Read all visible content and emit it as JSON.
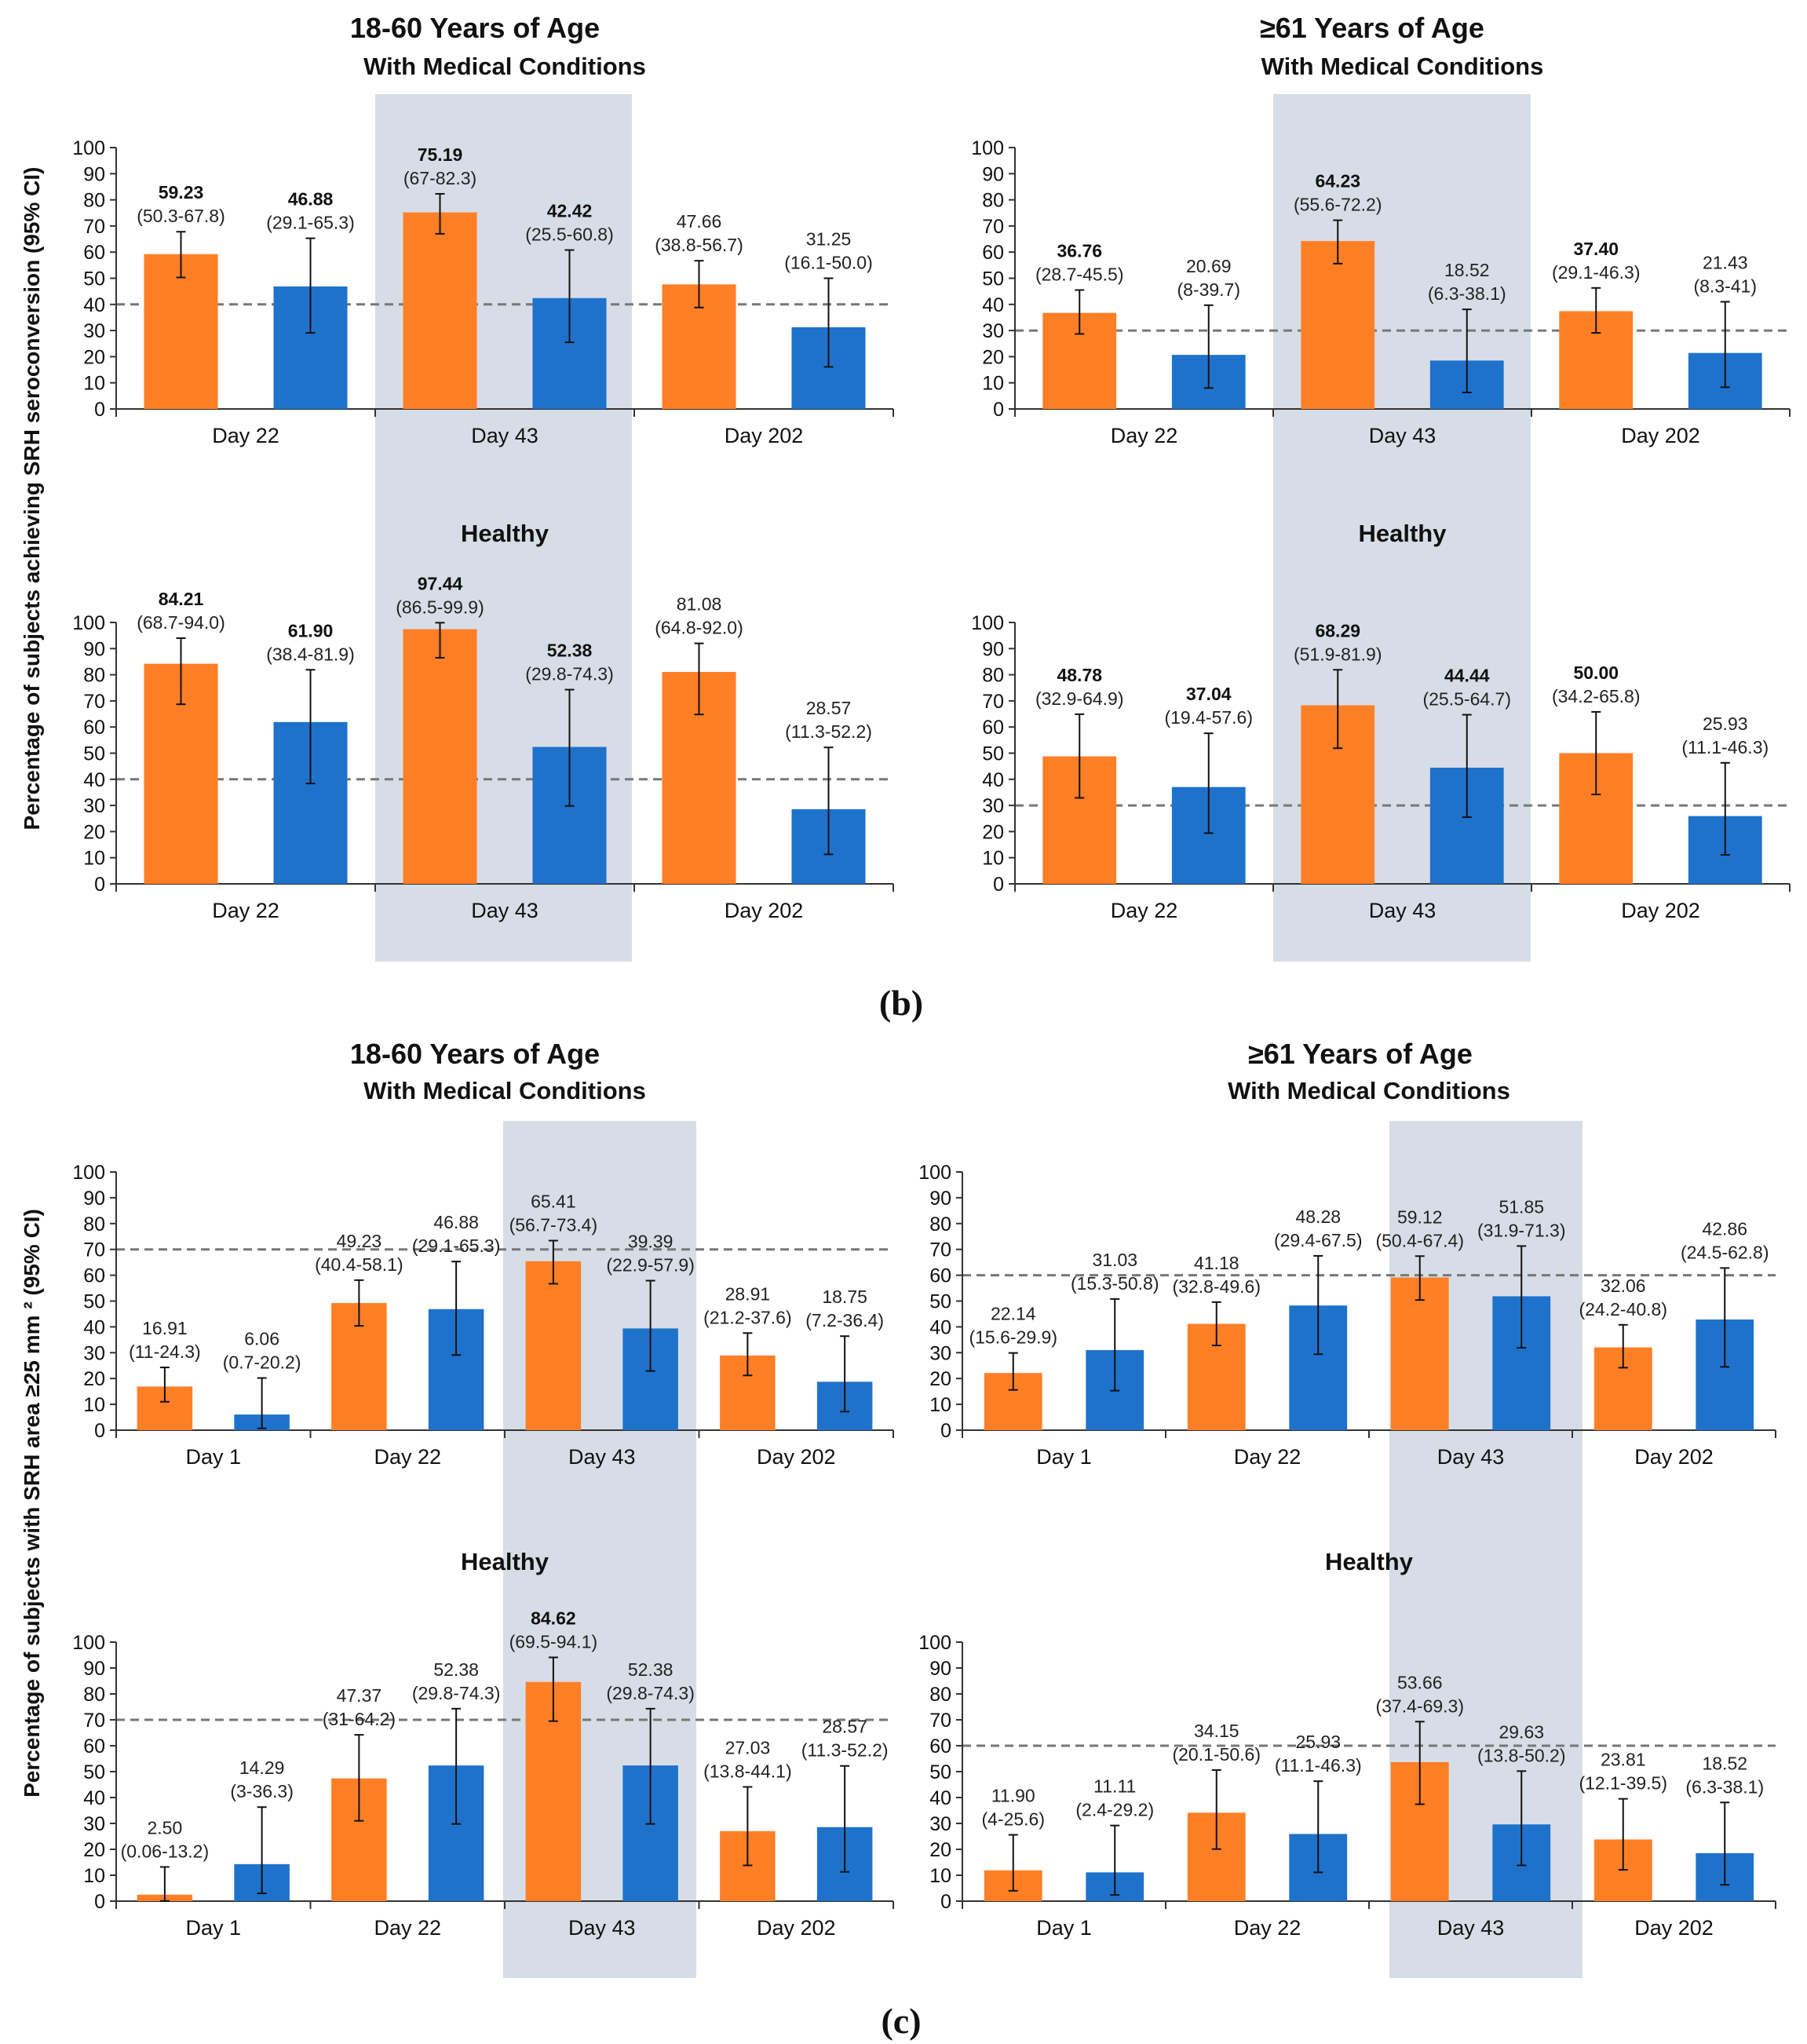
{
  "colors": {
    "orange": "#FF7F27",
    "blue": "#1F72CB",
    "shade": "#D7DDE6",
    "threshold": "#777777",
    "axis": "#333333"
  },
  "figure_labels": {
    "b": "(b)",
    "c": "(c)"
  },
  "y_axis_titles": {
    "b": "Percentage of subjects achieving SRH seroconversion (95% CI)",
    "c": "Percentage of subjects with SRH area ≥25 mm ² (95% CI)"
  },
  "column_titles": {
    "b_left": "18-60 Years of Age",
    "b_right": "≥61 Years of Age",
    "c_left": "18-60 Years of Age",
    "c_right": "≥61 Years of Age"
  },
  "chart_data": [
    {
      "id": "b1",
      "type": "bar",
      "title": "With Medical Conditions",
      "ylim": [
        0,
        100
      ],
      "threshold": 40,
      "yticks": [
        "0",
        "10",
        "20",
        "30",
        "40",
        "50",
        "60",
        "70",
        "80",
        "90",
        "100"
      ],
      "categories": [
        "Day 22",
        "Day 43",
        "Day 202"
      ],
      "shaded_category": 1,
      "bars": [
        {
          "value": 59.23,
          "label": "59.23",
          "ci": [
            50.3,
            67.8
          ],
          "ci_label": "(50.3-67.8)",
          "bold": true
        },
        {
          "value": 46.88,
          "label": "46.88",
          "ci": [
            29.1,
            65.3
          ],
          "ci_label": "(29.1-65.3)",
          "bold": true
        },
        {
          "value": 75.19,
          "label": "75.19",
          "ci": [
            67.0,
            82.3
          ],
          "ci_label": "(67-82.3)",
          "bold": true
        },
        {
          "value": 42.42,
          "label": "42.42",
          "ci": [
            25.5,
            60.8
          ],
          "ci_label": "(25.5-60.8)",
          "bold": true
        },
        {
          "value": 47.66,
          "label": "47.66",
          "ci": [
            38.8,
            56.7
          ],
          "ci_label": "(38.8-56.7)",
          "bold": false
        },
        {
          "value": 31.25,
          "label": "31.25",
          "ci": [
            16.1,
            50.0
          ],
          "ci_label": "(16.1-50.0)",
          "bold": false
        }
      ]
    },
    {
      "id": "b2",
      "type": "bar",
      "title": "With Medical Conditions",
      "ylim": [
        0,
        100
      ],
      "threshold": 30,
      "yticks": [
        "0",
        "10",
        "20",
        "30",
        "40",
        "50",
        "60",
        "70",
        "80",
        "90",
        "100"
      ],
      "categories": [
        "Day 22",
        "Day 43",
        "Day 202"
      ],
      "shaded_category": 1,
      "bars": [
        {
          "value": 36.76,
          "label": "36.76",
          "ci": [
            28.7,
            45.5
          ],
          "ci_label": "(28.7-45.5)",
          "bold": true
        },
        {
          "value": 20.69,
          "label": "20.69",
          "ci": [
            8.0,
            39.7
          ],
          "ci_label": "(8-39.7)",
          "bold": false
        },
        {
          "value": 64.23,
          "label": "64.23",
          "ci": [
            55.6,
            72.2
          ],
          "ci_label": "(55.6-72.2)",
          "bold": true
        },
        {
          "value": 18.52,
          "label": "18.52",
          "ci": [
            6.3,
            38.1
          ],
          "ci_label": "(6.3-38.1)",
          "bold": false
        },
        {
          "value": 37.4,
          "label": "37.40",
          "ci": [
            29.1,
            46.3
          ],
          "ci_label": "(29.1-46.3)",
          "bold": true
        },
        {
          "value": 21.43,
          "label": "21.43",
          "ci": [
            8.3,
            41.0
          ],
          "ci_label": "(8.3-41)",
          "bold": false
        }
      ]
    },
    {
      "id": "b3",
      "type": "bar",
      "title": "Healthy",
      "ylim": [
        0,
        100
      ],
      "threshold": 40,
      "yticks": [
        "0",
        "10",
        "20",
        "30",
        "40",
        "50",
        "60",
        "70",
        "80",
        "90",
        "100"
      ],
      "categories": [
        "Day 22",
        "Day 43",
        "Day 202"
      ],
      "shaded_category": 1,
      "bars": [
        {
          "value": 84.21,
          "label": "84.21",
          "ci": [
            68.7,
            94.0
          ],
          "ci_label": "(68.7-94.0)",
          "bold": true
        },
        {
          "value": 61.9,
          "label": "61.90",
          "ci": [
            38.4,
            81.9
          ],
          "ci_label": "(38.4-81.9)",
          "bold": true
        },
        {
          "value": 97.44,
          "label": "97.44",
          "ci": [
            86.5,
            99.9
          ],
          "ci_label": "(86.5-99.9)",
          "bold": true
        },
        {
          "value": 52.38,
          "label": "52.38",
          "ci": [
            29.8,
            74.3
          ],
          "ci_label": "(29.8-74.3)",
          "bold": true
        },
        {
          "value": 81.08,
          "label": "81.08",
          "ci": [
            64.8,
            92.0
          ],
          "ci_label": "(64.8-92.0)",
          "bold": false
        },
        {
          "value": 28.57,
          "label": "28.57",
          "ci": [
            11.3,
            52.2
          ],
          "ci_label": "(11.3-52.2)",
          "bold": false
        }
      ]
    },
    {
      "id": "b4",
      "type": "bar",
      "title": "Healthy",
      "ylim": [
        0,
        100
      ],
      "threshold": 30,
      "yticks": [
        "0",
        "10",
        "20",
        "30",
        "40",
        "50",
        "60",
        "70",
        "80",
        "90",
        "100"
      ],
      "categories": [
        "Day 22",
        "Day 43",
        "Day 202"
      ],
      "shaded_category": 1,
      "bars": [
        {
          "value": 48.78,
          "label": "48.78",
          "ci": [
            32.9,
            64.9
          ],
          "ci_label": "(32.9-64.9)",
          "bold": true
        },
        {
          "value": 37.04,
          "label": "37.04",
          "ci": [
            19.4,
            57.6
          ],
          "ci_label": "(19.4-57.6)",
          "bold": true
        },
        {
          "value": 68.29,
          "label": "68.29",
          "ci": [
            51.9,
            81.9
          ],
          "ci_label": "(51.9-81.9)",
          "bold": true
        },
        {
          "value": 44.44,
          "label": "44.44",
          "ci": [
            25.5,
            64.7
          ],
          "ci_label": "(25.5-64.7)",
          "bold": true
        },
        {
          "value": 50.0,
          "label": "50.00",
          "ci": [
            34.2,
            65.8
          ],
          "ci_label": "(34.2-65.8)",
          "bold": true
        },
        {
          "value": 25.93,
          "label": "25.93",
          "ci": [
            11.1,
            46.3
          ],
          "ci_label": "(11.1-46.3)",
          "bold": false
        }
      ]
    },
    {
      "id": "c1",
      "type": "bar",
      "title": "With Medical Conditions",
      "ylim": [
        0,
        100
      ],
      "threshold": 70,
      "yticks": [
        "0",
        "10",
        "20",
        "30",
        "40",
        "50",
        "60",
        "70",
        "80",
        "90",
        "100"
      ],
      "categories": [
        "Day 1",
        "Day 22",
        "Day 43",
        "Day 202"
      ],
      "shaded_category": 2,
      "bars": [
        {
          "value": 16.91,
          "label": "16.91",
          "ci": [
            11.0,
            24.3
          ],
          "ci_label": "(11-24.3)",
          "bold": false
        },
        {
          "value": 6.06,
          "label": "6.06",
          "ci": [
            0.7,
            20.2
          ],
          "ci_label": "(0.7-20.2)",
          "bold": false
        },
        {
          "value": 49.23,
          "label": "49.23",
          "ci": [
            40.4,
            58.1
          ],
          "ci_label": "(40.4-58.1)",
          "bold": false
        },
        {
          "value": 46.88,
          "label": "46.88",
          "ci": [
            29.1,
            65.3
          ],
          "ci_label": "(29.1-65.3)",
          "bold": false
        },
        {
          "value": 65.41,
          "label": "65.41",
          "ci": [
            56.7,
            73.4
          ],
          "ci_label": "(56.7-73.4)",
          "bold": false
        },
        {
          "value": 39.39,
          "label": "39.39",
          "ci": [
            22.9,
            57.9
          ],
          "ci_label": "(22.9-57.9)",
          "bold": false
        },
        {
          "value": 28.91,
          "label": "28.91",
          "ci": [
            21.2,
            37.6
          ],
          "ci_label": "(21.2-37.6)",
          "bold": false
        },
        {
          "value": 18.75,
          "label": "18.75",
          "ci": [
            7.2,
            36.4
          ],
          "ci_label": "(7.2-36.4)",
          "bold": false
        }
      ]
    },
    {
      "id": "c2",
      "type": "bar",
      "title": "With Medical Conditions",
      "ylim": [
        0,
        100
      ],
      "threshold": 60,
      "yticks": [
        "0",
        "10",
        "20",
        "30",
        "40",
        "50",
        "60",
        "70",
        "80",
        "90",
        "100"
      ],
      "categories": [
        "Day 1",
        "Day 22",
        "Day 43",
        "Day 202"
      ],
      "shaded_category": 2,
      "bars": [
        {
          "value": 22.14,
          "label": "22.14",
          "ci": [
            15.6,
            29.9
          ],
          "ci_label": "(15.6-29.9)",
          "bold": false
        },
        {
          "value": 31.03,
          "label": "31.03",
          "ci": [
            15.3,
            50.8
          ],
          "ci_label": "(15.3-50.8)",
          "bold": false
        },
        {
          "value": 41.18,
          "label": "41.18",
          "ci": [
            32.8,
            49.6
          ],
          "ci_label": "(32.8-49.6)",
          "bold": false
        },
        {
          "value": 48.28,
          "label": "48.28",
          "ci": [
            29.4,
            67.5
          ],
          "ci_label": "(29.4-67.5)",
          "bold": false
        },
        {
          "value": 59.12,
          "label": "59.12",
          "ci": [
            50.4,
            67.4
          ],
          "ci_label": "(50.4-67.4)",
          "bold": false
        },
        {
          "value": 51.85,
          "label": "51.85",
          "ci": [
            31.9,
            71.3
          ],
          "ci_label": "(31.9-71.3)",
          "bold": false
        },
        {
          "value": 32.06,
          "label": "32.06",
          "ci": [
            24.2,
            40.8
          ],
          "ci_label": "(24.2-40.8)",
          "bold": false
        },
        {
          "value": 42.86,
          "label": "42.86",
          "ci": [
            24.5,
            62.8
          ],
          "ci_label": "(24.5-62.8)",
          "bold": false
        }
      ]
    },
    {
      "id": "c3",
      "type": "bar",
      "title": "Healthy",
      "ylim": [
        0,
        100
      ],
      "threshold": 70,
      "yticks": [
        "0",
        "10",
        "20",
        "30",
        "40",
        "50",
        "60",
        "70",
        "80",
        "90",
        "100"
      ],
      "categories": [
        "Day 1",
        "Day 22",
        "Day 43",
        "Day 202"
      ],
      "shaded_category": 2,
      "bars": [
        {
          "value": 2.5,
          "label": "2.50",
          "ci": [
            0.06,
            13.2
          ],
          "ci_label": "(0.06-13.2)",
          "bold": false
        },
        {
          "value": 14.29,
          "label": "14.29",
          "ci": [
            3.0,
            36.3
          ],
          "ci_label": "(3-36.3)",
          "bold": false
        },
        {
          "value": 47.37,
          "label": "47.37",
          "ci": [
            31.0,
            64.2
          ],
          "ci_label": "(31-64.2)",
          "bold": false
        },
        {
          "value": 52.38,
          "label": "52.38",
          "ci": [
            29.8,
            74.3
          ],
          "ci_label": "(29.8-74.3)",
          "bold": false
        },
        {
          "value": 84.62,
          "label": "84.62",
          "ci": [
            69.5,
            94.1
          ],
          "ci_label": "(69.5-94.1)",
          "bold": true
        },
        {
          "value": 52.38,
          "label": "52.38",
          "ci": [
            29.8,
            74.3
          ],
          "ci_label": "(29.8-74.3)",
          "bold": false
        },
        {
          "value": 27.03,
          "label": "27.03",
          "ci": [
            13.8,
            44.1
          ],
          "ci_label": "(13.8-44.1)",
          "bold": false
        },
        {
          "value": 28.57,
          "label": "28.57",
          "ci": [
            11.3,
            52.2
          ],
          "ci_label": "(11.3-52.2)",
          "bold": false
        }
      ]
    },
    {
      "id": "c4",
      "type": "bar",
      "title": "Healthy",
      "ylim": [
        0,
        100
      ],
      "threshold": 60,
      "yticks": [
        "0",
        "10",
        "20",
        "30",
        "40",
        "50",
        "60",
        "70",
        "80",
        "90",
        "100"
      ],
      "categories": [
        "Day 1",
        "Day 22",
        "Day 43",
        "Day 202"
      ],
      "shaded_category": 2,
      "bars": [
        {
          "value": 11.9,
          "label": "11.90",
          "ci": [
            4.0,
            25.6
          ],
          "ci_label": "(4-25.6)",
          "bold": false
        },
        {
          "value": 11.11,
          "label": "11.11",
          "ci": [
            2.4,
            29.2
          ],
          "ci_label": "(2.4-29.2)",
          "bold": false
        },
        {
          "value": 34.15,
          "label": "34.15",
          "ci": [
            20.1,
            50.6
          ],
          "ci_label": "(20.1-50.6)",
          "bold": false
        },
        {
          "value": 25.93,
          "label": "25.93",
          "ci": [
            11.1,
            46.3
          ],
          "ci_label": "(11.1-46.3)",
          "bold": false
        },
        {
          "value": 53.66,
          "label": "53.66",
          "ci": [
            37.4,
            69.3
          ],
          "ci_label": "(37.4-69.3)",
          "bold": false
        },
        {
          "value": 29.63,
          "label": "29.63",
          "ci": [
            13.8,
            50.2
          ],
          "ci_label": "(13.8-50.2)",
          "bold": false
        },
        {
          "value": 23.81,
          "label": "23.81",
          "ci": [
            12.1,
            39.5
          ],
          "ci_label": "(12.1-39.5)",
          "bold": false
        },
        {
          "value": 18.52,
          "label": "18.52",
          "ci": [
            6.3,
            38.1
          ],
          "ci_label": "(6.3-38.1)",
          "bold": false
        }
      ]
    }
  ]
}
